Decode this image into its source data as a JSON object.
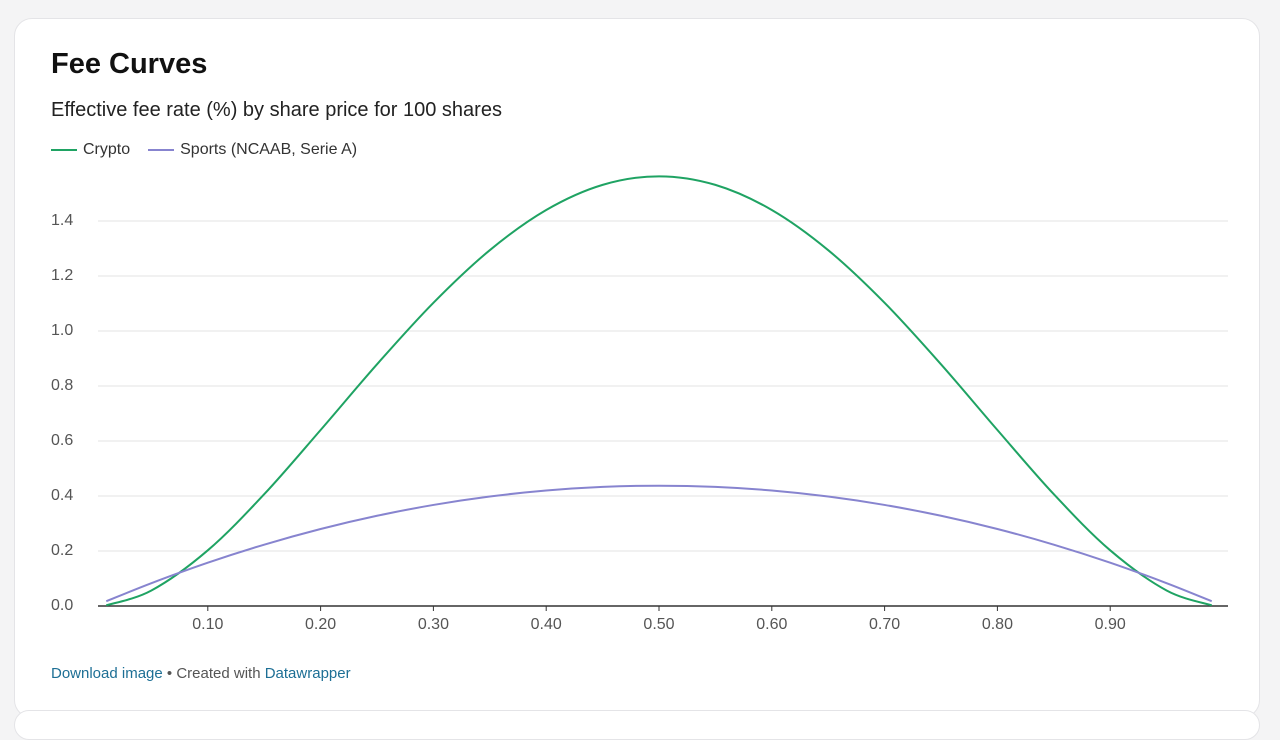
{
  "chart_data": {
    "type": "line",
    "title": "Fee Curves",
    "subtitle": "Effective fee rate (%) by share price for 100 shares",
    "x": [
      0.01,
      0.05,
      0.1,
      0.15,
      0.2,
      0.25,
      0.3,
      0.35,
      0.4,
      0.45,
      0.5,
      0.55,
      0.6,
      0.65,
      0.7,
      0.75,
      0.8,
      0.85,
      0.9,
      0.95,
      0.99
    ],
    "series": [
      {
        "name": "Crypto",
        "color": "#1fa363",
        "values": [
          0.0025,
          0.0564,
          0.2025,
          0.4064,
          0.64,
          0.8789,
          1.1025,
          1.2939,
          1.44,
          1.5314,
          1.5625,
          1.5314,
          1.44,
          1.2939,
          1.1025,
          0.8789,
          0.64,
          0.4064,
          0.2025,
          0.0564,
          0.0025
        ]
      },
      {
        "name": "Sports (NCAAB, Serie A)",
        "color": "#8784cf",
        "values": [
          0.0173,
          0.0831,
          0.1575,
          0.2231,
          0.28,
          0.3281,
          0.3675,
          0.3981,
          0.42,
          0.4331,
          0.4375,
          0.4331,
          0.42,
          0.3981,
          0.3675,
          0.3281,
          0.28,
          0.2231,
          0.1575,
          0.0831,
          0.0173
        ]
      }
    ],
    "xlim": [
      0,
      1
    ],
    "ylim": [
      0,
      1.6
    ],
    "xticks": [
      {
        "value": 0.1,
        "label": "0.10"
      },
      {
        "value": 0.2,
        "label": "0.20"
      },
      {
        "value": 0.3,
        "label": "0.30"
      },
      {
        "value": 0.4,
        "label": "0.40"
      },
      {
        "value": 0.5,
        "label": "0.50"
      },
      {
        "value": 0.6,
        "label": "0.60"
      },
      {
        "value": 0.7,
        "label": "0.70"
      },
      {
        "value": 0.8,
        "label": "0.80"
      },
      {
        "value": 0.9,
        "label": "0.90"
      }
    ],
    "yticks": [
      {
        "value": 0,
        "label": "0.0"
      },
      0.2,
      0.4,
      0.6,
      0.8,
      {
        "value": 1,
        "label": "1.0"
      },
      1.2,
      1.4
    ],
    "grid": true,
    "footer": {
      "download": "Download image",
      "created": "• Created with",
      "tool": "Datawrapper"
    }
  }
}
